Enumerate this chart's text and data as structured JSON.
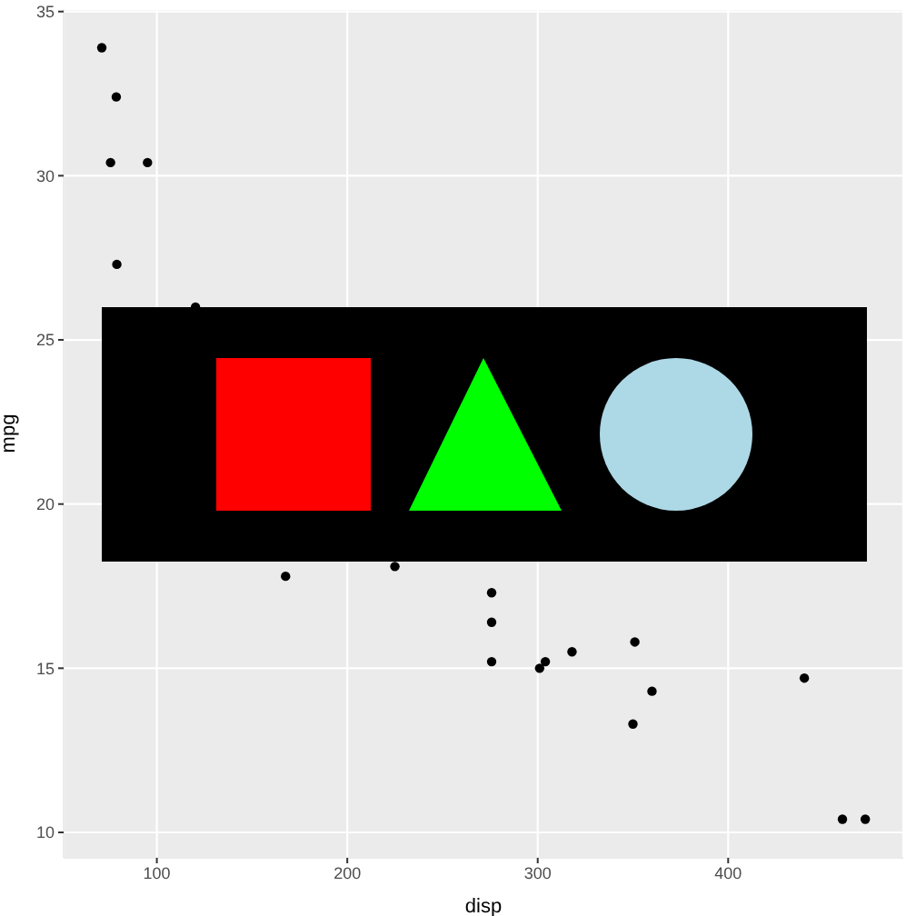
{
  "chart_data": {
    "type": "scatter",
    "xlabel": "disp",
    "ylabel": "mpg",
    "x": [
      71.1,
      78.7,
      75.7,
      95.1,
      79,
      120.3,
      167.6,
      225,
      275.8,
      275.8,
      275.8,
      301,
      304,
      318,
      351,
      360,
      350,
      440,
      460,
      472
    ],
    "values": [
      33.9,
      32.4,
      30.4,
      30.4,
      27.3,
      26,
      17.8,
      18.1,
      17.3,
      16.4,
      15.2,
      15,
      15.2,
      15.5,
      15.8,
      14.3,
      13.3,
      14.7,
      10.4,
      10.4
    ],
    "color": "#000000",
    "marker": "circle",
    "xlim": [
      51.05,
      491.95
    ],
    "xticks": [
      100,
      200,
      300,
      400
    ],
    "ylim": [
      9.225,
      35.075
    ],
    "yticks": [
      10,
      15,
      20,
      25,
      30,
      35
    ],
    "grid": true,
    "legend": false
  }
}
